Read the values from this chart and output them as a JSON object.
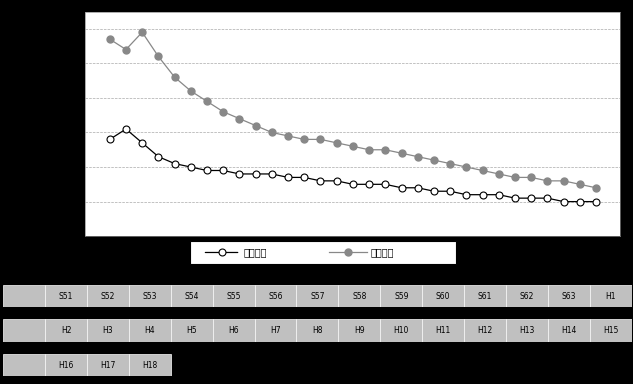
{
  "years": [
    "S51",
    "S52",
    "S53",
    "S54",
    "S55",
    "S56",
    "S57",
    "S58",
    "S59",
    "S60",
    "S61",
    "S62",
    "S63",
    "H1",
    "H2",
    "H3",
    "H4",
    "H5",
    "H6",
    "H7",
    "H8",
    "H9",
    "H10",
    "H11",
    "H12",
    "H13",
    "H14",
    "H15",
    "H16",
    "H17",
    "H18"
  ],
  "ippan": [
    0.28,
    0.31,
    0.27,
    0.23,
    0.21,
    0.2,
    0.19,
    0.19,
    0.18,
    0.18,
    0.18,
    0.17,
    0.17,
    0.16,
    0.16,
    0.15,
    0.15,
    0.15,
    0.14,
    0.14,
    0.13,
    0.13,
    0.12,
    0.12,
    0.12,
    0.11,
    0.11,
    0.11,
    0.1,
    0.1,
    0.1
  ],
  "jihai": [
    0.57,
    0.54,
    0.59,
    0.52,
    0.46,
    0.42,
    0.39,
    0.36,
    0.34,
    0.32,
    0.3,
    0.29,
    0.28,
    0.28,
    0.27,
    0.26,
    0.25,
    0.25,
    0.24,
    0.23,
    0.22,
    0.21,
    0.2,
    0.19,
    0.18,
    0.17,
    0.17,
    0.16,
    0.16,
    0.15,
    0.14
  ],
  "y_ticks": [
    0.0,
    0.1,
    0.2,
    0.3,
    0.4,
    0.5,
    0.6
  ],
  "ylim": [
    0.0,
    0.65
  ],
  "row1_labels": [
    "S51",
    "S52",
    "S53",
    "S54",
    "S55",
    "S56",
    "S57",
    "S58",
    "S59",
    "S60",
    "S61",
    "S62",
    "S63",
    "H1"
  ],
  "row2_labels": [
    "H2",
    "H3",
    "H4",
    "H5",
    "H6",
    "H7",
    "H8",
    "H9",
    "H10",
    "H11",
    "H12",
    "H13",
    "H14",
    "H15"
  ],
  "row3_labels": [
    "H16",
    "H17",
    "H18"
  ],
  "bg_color": "#000000",
  "plot_bg": "#ffffff",
  "grid_color": "#aaaaaa",
  "ippan_color": "#000000",
  "jihai_color": "#888888",
  "table_bg": "#c0c0c0",
  "table_border": "#ffffff",
  "legend_ippan": "一般局",
  "legend_jihai": "自排局"
}
